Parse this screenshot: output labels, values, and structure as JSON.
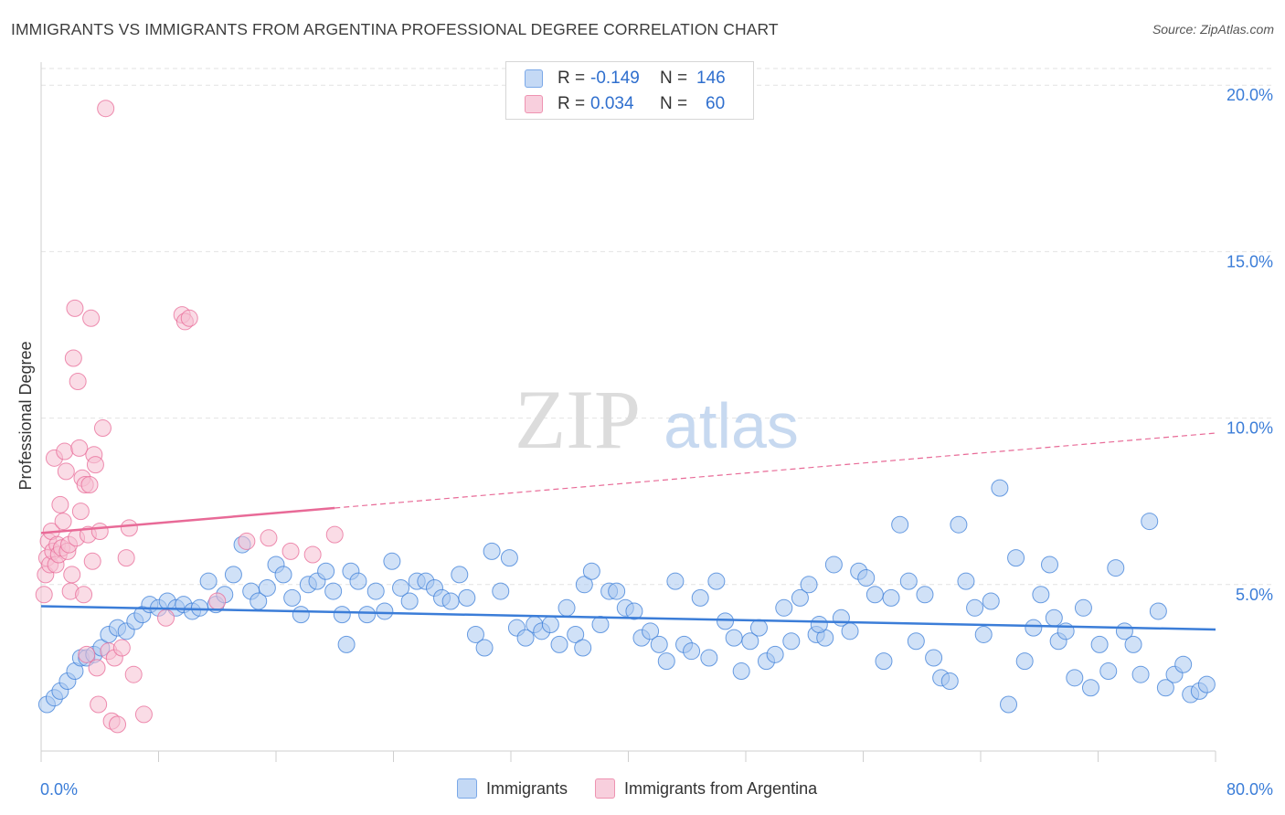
{
  "header": {
    "title": "IMMIGRANTS VS IMMIGRANTS FROM ARGENTINA PROFESSIONAL DEGREE CORRELATION CHART",
    "source": "Source: ZipAtlas.com"
  },
  "watermark": {
    "zip": "ZIP",
    "atlas": "atlas"
  },
  "stats": [
    {
      "r_label": "R = ",
      "r_value": "-0.149",
      "n_label": "N = ",
      "n_value": "146",
      "color": "#7aa8e8",
      "fill": "#c4d9f5"
    },
    {
      "r_label": "R = ",
      "r_value": "0.034",
      "n_label": "N = ",
      "n_value": "60",
      "color": "#ee93b1",
      "fill": "#f8cfdd"
    }
  ],
  "chart_data": {
    "type": "scatter",
    "title": "IMMIGRANTS VS IMMIGRANTS FROM ARGENTINA PROFESSIONAL DEGREE CORRELATION CHART",
    "xlabel": "",
    "ylabel": "Professional Degree",
    "xlim": [
      0,
      80
    ],
    "ylim": [
      0,
      20.5
    ],
    "x_tick_labels": [
      "0.0%",
      "80.0%"
    ],
    "y_ticks": [
      5,
      10,
      15,
      20
    ],
    "y_tick_labels": [
      "5.0%",
      "10.0%",
      "15.0%",
      "20.0%"
    ],
    "grid": true,
    "legend_position": "bottom",
    "series": [
      {
        "name": "Immigrants",
        "color": "#3b7dd8",
        "fill": "#a9c8f0",
        "trend": {
          "x0": 0,
          "y0": 4.35,
          "x1": 80,
          "y1": 3.65,
          "dashed_from": null
        },
        "points": [
          [
            0.4,
            1.4
          ],
          [
            0.9,
            1.6
          ],
          [
            1.3,
            1.8
          ],
          [
            1.8,
            2.1
          ],
          [
            2.3,
            2.4
          ],
          [
            2.7,
            2.8
          ],
          [
            3.1,
            2.8
          ],
          [
            3.6,
            2.9
          ],
          [
            4.1,
            3.1
          ],
          [
            4.6,
            3.5
          ],
          [
            5.2,
            3.7
          ],
          [
            5.8,
            3.6
          ],
          [
            6.4,
            3.9
          ],
          [
            6.9,
            4.1
          ],
          [
            7.4,
            4.4
          ],
          [
            8.0,
            4.3
          ],
          [
            8.6,
            4.5
          ],
          [
            9.2,
            4.3
          ],
          [
            9.7,
            4.4
          ],
          [
            10.3,
            4.2
          ],
          [
            10.8,
            4.3
          ],
          [
            11.4,
            5.1
          ],
          [
            11.9,
            4.4
          ],
          [
            12.5,
            4.7
          ],
          [
            13.1,
            5.3
          ],
          [
            13.7,
            6.2
          ],
          [
            14.3,
            4.8
          ],
          [
            14.8,
            4.5
          ],
          [
            15.4,
            4.9
          ],
          [
            16.0,
            5.6
          ],
          [
            16.5,
            5.3
          ],
          [
            17.1,
            4.6
          ],
          [
            17.7,
            4.1
          ],
          [
            18.2,
            5.0
          ],
          [
            18.8,
            5.1
          ],
          [
            19.4,
            5.4
          ],
          [
            19.9,
            4.8
          ],
          [
            20.5,
            4.1
          ],
          [
            21.1,
            5.4
          ],
          [
            21.6,
            5.1
          ],
          [
            22.2,
            4.1
          ],
          [
            22.8,
            4.8
          ],
          [
            23.4,
            4.2
          ],
          [
            23.9,
            5.7
          ],
          [
            24.5,
            4.9
          ],
          [
            25.1,
            4.5
          ],
          [
            25.6,
            5.1
          ],
          [
            26.2,
            5.1
          ],
          [
            26.8,
            4.9
          ],
          [
            27.3,
            4.6
          ],
          [
            27.9,
            4.5
          ],
          [
            28.5,
            5.3
          ],
          [
            29.0,
            4.6
          ],
          [
            29.6,
            3.5
          ],
          [
            30.2,
            3.1
          ],
          [
            30.7,
            6.0
          ],
          [
            31.3,
            4.8
          ],
          [
            31.9,
            5.8
          ],
          [
            32.4,
            3.7
          ],
          [
            33.0,
            3.4
          ],
          [
            33.6,
            3.8
          ],
          [
            34.1,
            3.6
          ],
          [
            34.7,
            3.8
          ],
          [
            35.3,
            3.2
          ],
          [
            35.8,
            4.3
          ],
          [
            36.4,
            3.5
          ],
          [
            37.0,
            5.0
          ],
          [
            37.5,
            5.4
          ],
          [
            38.1,
            3.8
          ],
          [
            38.7,
            4.8
          ],
          [
            39.2,
            4.8
          ],
          [
            39.8,
            4.3
          ],
          [
            40.4,
            4.2
          ],
          [
            40.9,
            3.4
          ],
          [
            41.5,
            3.6
          ],
          [
            42.1,
            3.2
          ],
          [
            42.6,
            2.7
          ],
          [
            43.2,
            5.1
          ],
          [
            43.8,
            3.2
          ],
          [
            44.3,
            3.0
          ],
          [
            44.9,
            4.6
          ],
          [
            45.5,
            2.8
          ],
          [
            46.0,
            5.1
          ],
          [
            46.6,
            3.9
          ],
          [
            47.2,
            3.4
          ],
          [
            47.7,
            2.4
          ],
          [
            48.3,
            3.3
          ],
          [
            48.9,
            3.7
          ],
          [
            49.4,
            2.7
          ],
          [
            50.0,
            2.9
          ],
          [
            50.6,
            4.3
          ],
          [
            51.1,
            3.3
          ],
          [
            51.7,
            4.6
          ],
          [
            52.3,
            5.0
          ],
          [
            52.8,
            3.5
          ],
          [
            53.4,
            3.4
          ],
          [
            54.0,
            5.6
          ],
          [
            54.5,
            4.0
          ],
          [
            55.1,
            3.6
          ],
          [
            55.7,
            5.4
          ],
          [
            56.2,
            5.2
          ],
          [
            56.8,
            4.7
          ],
          [
            57.4,
            2.7
          ],
          [
            57.9,
            4.6
          ],
          [
            58.5,
            6.8
          ],
          [
            59.1,
            5.1
          ],
          [
            59.6,
            3.3
          ],
          [
            60.2,
            4.7
          ],
          [
            60.8,
            2.8
          ],
          [
            61.3,
            2.2
          ],
          [
            61.9,
            2.1
          ],
          [
            62.5,
            6.8
          ],
          [
            63.0,
            5.1
          ],
          [
            63.6,
            4.3
          ],
          [
            64.2,
            3.5
          ],
          [
            64.7,
            4.5
          ],
          [
            65.3,
            7.9
          ],
          [
            65.9,
            1.4
          ],
          [
            66.4,
            5.8
          ],
          [
            67.0,
            2.7
          ],
          [
            67.6,
            3.7
          ],
          [
            68.1,
            4.7
          ],
          [
            68.7,
            5.6
          ],
          [
            69.3,
            3.3
          ],
          [
            69.8,
            3.6
          ],
          [
            70.4,
            2.2
          ],
          [
            71.0,
            4.3
          ],
          [
            71.5,
            1.9
          ],
          [
            72.1,
            3.2
          ],
          [
            72.7,
            2.4
          ],
          [
            73.2,
            5.5
          ],
          [
            73.8,
            3.6
          ],
          [
            74.4,
            3.2
          ],
          [
            74.9,
            2.3
          ],
          [
            75.5,
            6.9
          ],
          [
            76.1,
            4.2
          ],
          [
            76.6,
            1.9
          ],
          [
            77.2,
            2.3
          ],
          [
            77.8,
            2.6
          ],
          [
            78.3,
            1.7
          ],
          [
            78.9,
            1.8
          ],
          [
            79.4,
            2.0
          ],
          [
            20.8,
            3.2
          ],
          [
            36.9,
            3.1
          ],
          [
            53.0,
            3.8
          ],
          [
            69.0,
            4.0
          ]
        ]
      },
      {
        "name": "Immigrants from Argentina",
        "color": "#e86a97",
        "fill": "#f6bfd2",
        "trend": {
          "x0": 0,
          "y0": 6.55,
          "x1": 80,
          "y1": 9.55,
          "dashed_from": 20
        },
        "points": [
          [
            0.2,
            4.7
          ],
          [
            0.3,
            5.3
          ],
          [
            0.4,
            5.8
          ],
          [
            0.5,
            6.3
          ],
          [
            0.6,
            5.6
          ],
          [
            0.7,
            6.6
          ],
          [
            0.8,
            6.0
          ],
          [
            0.9,
            8.8
          ],
          [
            1.0,
            5.6
          ],
          [
            1.1,
            6.2
          ],
          [
            1.2,
            5.9
          ],
          [
            1.3,
            7.4
          ],
          [
            1.4,
            6.1
          ],
          [
            1.5,
            6.9
          ],
          [
            1.6,
            9.0
          ],
          [
            1.7,
            8.4
          ],
          [
            1.8,
            6.0
          ],
          [
            1.9,
            6.2
          ],
          [
            2.0,
            4.8
          ],
          [
            2.1,
            5.3
          ],
          [
            2.2,
            11.8
          ],
          [
            2.3,
            13.3
          ],
          [
            2.4,
            6.4
          ],
          [
            2.5,
            11.1
          ],
          [
            2.6,
            9.1
          ],
          [
            2.7,
            7.2
          ],
          [
            2.8,
            8.2
          ],
          [
            2.9,
            4.7
          ],
          [
            3.0,
            8.0
          ],
          [
            3.1,
            2.9
          ],
          [
            3.2,
            6.5
          ],
          [
            3.3,
            8.0
          ],
          [
            3.4,
            13.0
          ],
          [
            3.5,
            5.7
          ],
          [
            3.6,
            8.9
          ],
          [
            3.7,
            8.6
          ],
          [
            3.8,
            2.5
          ],
          [
            3.9,
            1.4
          ],
          [
            4.0,
            6.6
          ],
          [
            4.2,
            9.7
          ],
          [
            4.4,
            19.3
          ],
          [
            4.6,
            3.0
          ],
          [
            4.8,
            0.9
          ],
          [
            5.0,
            2.8
          ],
          [
            5.2,
            0.8
          ],
          [
            5.5,
            3.1
          ],
          [
            5.8,
            5.8
          ],
          [
            6.0,
            6.7
          ],
          [
            6.3,
            2.3
          ],
          [
            7.0,
            1.1
          ],
          [
            8.5,
            4.0
          ],
          [
            9.6,
            13.1
          ],
          [
            9.8,
            12.9
          ],
          [
            10.1,
            13.0
          ],
          [
            12.0,
            4.5
          ],
          [
            14.0,
            6.3
          ],
          [
            15.5,
            6.4
          ],
          [
            17.0,
            6.0
          ],
          [
            18.5,
            5.9
          ],
          [
            20.0,
            6.5
          ]
        ]
      }
    ]
  },
  "legend": [
    {
      "label": "Immigrants",
      "color": "#7aa8e8",
      "fill": "#c4d9f5"
    },
    {
      "label": "Immigrants from Argentina",
      "color": "#ee93b1",
      "fill": "#f8cfdd"
    }
  ]
}
